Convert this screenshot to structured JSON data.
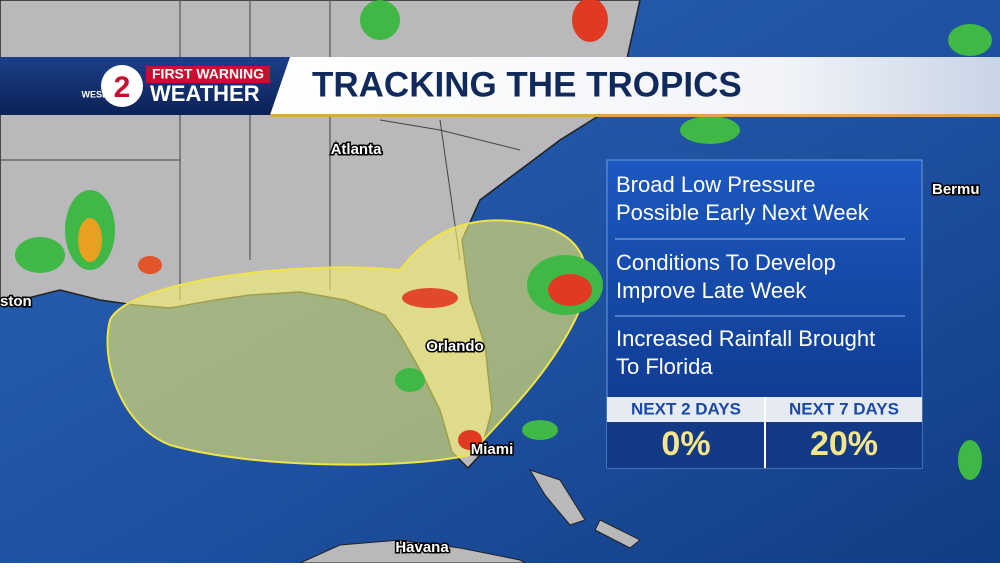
{
  "header": {
    "logo": {
      "station": "WESH",
      "channel": "2",
      "first_warning": "FIRST WARNING",
      "weather": "WEATHER"
    },
    "title": "TRACKING THE TROPICS"
  },
  "map": {
    "cities": [
      "Atlanta",
      "Orlando",
      "Miami",
      "Havana",
      "ston",
      "Bermu"
    ]
  },
  "outlook": {
    "notes": [
      {
        "lines": [
          "Broad Low Pressure",
          "Possible Early Next Week"
        ]
      },
      {
        "lines": [
          "Conditions To Develop",
          "Improve Late Week"
        ]
      },
      {
        "lines": [
          "Increased Rainfall Brought",
          "To Florida"
        ]
      }
    ],
    "chances": [
      {
        "label": "NEXT 2 DAYS",
        "value": "0%"
      },
      {
        "label": "NEXT 7 DAYS",
        "value": "20%"
      }
    ]
  }
}
